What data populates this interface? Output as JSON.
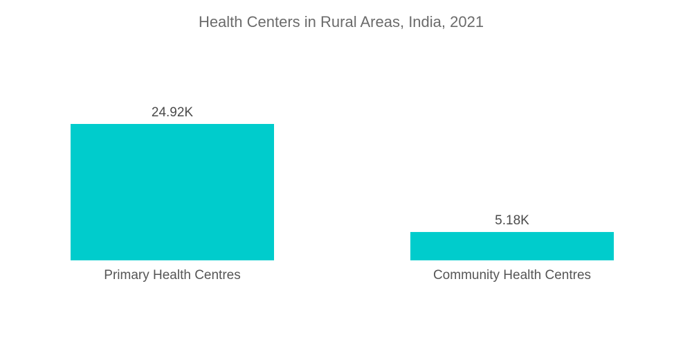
{
  "chart_data": {
    "type": "bar",
    "title": "Health Centers in Rural Areas, India, 2021",
    "categories": [
      "Primary Health Centres",
      "Community Health Centres"
    ],
    "values": [
      24.92,
      5.18
    ],
    "value_labels": [
      "24.92K",
      "5.18K"
    ],
    "unit": "K",
    "xlabel": "",
    "ylabel": "",
    "ylim": [
      0,
      24.92
    ],
    "grid": false,
    "legend": "none",
    "bar_color": "#00cccc"
  }
}
